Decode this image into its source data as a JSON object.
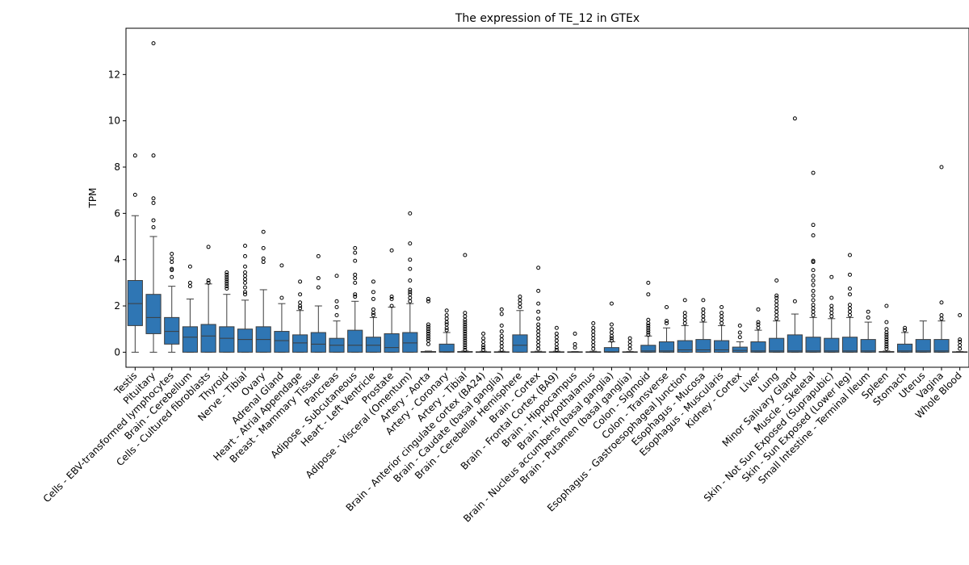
{
  "chart_data": {
    "type": "box",
    "title": "The expression of TE_12 in GTEx",
    "xlabel": "",
    "ylabel": "TPM",
    "ylim": [
      -0.65,
      14.0
    ],
    "yticks": [
      0,
      2,
      4,
      6,
      8,
      10,
      12
    ],
    "grid": false,
    "legend": "none",
    "box_color": "#2f76b4",
    "categories": [
      "Testis",
      "Pituitary",
      "Cells - EBV-transformed lymphocytes",
      "Brain - Cerebellum",
      "Cells - Cultured fibroblasts",
      "Thyroid",
      "Nerve - Tibial",
      "Ovary",
      "Adrenal Gland",
      "Heart - Atrial Appendage",
      "Breast - Mammary Tissue",
      "Pancreas",
      "Adipose - Subcutaneous",
      "Heart - Left Ventricle",
      "Prostate",
      "Adipose - Visceral (Omentum)",
      "Artery - Aorta",
      "Artery - Coronary",
      "Artery - Tibial",
      "Brain - Anterior cingulate cortex (BA24)",
      "Brain - Caudate (basal ganglia)",
      "Brain - Cerebellar Hemisphere",
      "Brain - Cortex",
      "Brain - Frontal Cortex (BA9)",
      "Brain - Hippocampus",
      "Brain - Hypothalamus",
      "Brain - Nucleus accumbens (basal ganglia)",
      "Brain - Putamen (basal ganglia)",
      "Colon - Sigmoid",
      "Colon - Transverse",
      "Esophagus - Gastroesophageal Junction",
      "Esophagus - Mucosa",
      "Esophagus - Muscularis",
      "Kidney - Cortex",
      "Liver",
      "Lung",
      "Minor Salivary Gland",
      "Muscle - Skeletal",
      "Skin - Not Sun Exposed (Suprapubic)",
      "Skin - Sun Exposed (Lower leg)",
      "Small Intestine - Terminal Ileum",
      "Spleen",
      "Stomach",
      "Uterus",
      "Vagina",
      "Whole Blood"
    ],
    "boxes": [
      {
        "q1": 1.15,
        "median": 2.1,
        "q3": 3.1,
        "lo": 0.0,
        "hi": 5.9,
        "outliers": [
          6.8,
          8.5
        ]
      },
      {
        "q1": 0.8,
        "median": 1.5,
        "q3": 2.5,
        "lo": 0.0,
        "hi": 5.0,
        "outliers": [
          5.4,
          5.7,
          6.45,
          6.65,
          8.5,
          13.35
        ]
      },
      {
        "q1": 0.35,
        "median": 0.9,
        "q3": 1.5,
        "lo": 0.0,
        "hi": 2.85,
        "outliers": [
          3.25,
          3.55,
          3.6,
          3.9,
          4.05,
          4.25
        ]
      },
      {
        "q1": 0.0,
        "median": 0.65,
        "q3": 1.1,
        "lo": 0.0,
        "hi": 2.3,
        "outliers": [
          2.85,
          3.0,
          3.7
        ]
      },
      {
        "q1": 0.0,
        "median": 0.7,
        "q3": 1.2,
        "lo": 0.0,
        "hi": 2.95,
        "outliers": [
          3.0,
          3.1,
          4.55
        ]
      },
      {
        "q1": 0.0,
        "median": 0.6,
        "q3": 1.1,
        "lo": 0.0,
        "hi": 2.5,
        "outliers": [
          2.75,
          2.85,
          2.95,
          3.05,
          3.15,
          3.25,
          3.35,
          3.45
        ]
      },
      {
        "q1": 0.0,
        "median": 0.55,
        "q3": 1.0,
        "lo": 0.0,
        "hi": 2.25,
        "outliers": [
          2.5,
          2.6,
          2.8,
          3.0,
          3.15,
          3.3,
          3.45,
          3.7,
          4.15,
          4.6
        ]
      },
      {
        "q1": 0.0,
        "median": 0.55,
        "q3": 1.1,
        "lo": 0.0,
        "hi": 2.7,
        "outliers": [
          3.9,
          4.05,
          4.5,
          5.2
        ]
      },
      {
        "q1": 0.0,
        "median": 0.5,
        "q3": 0.9,
        "lo": 0.0,
        "hi": 2.1,
        "outliers": [
          2.35,
          3.75
        ]
      },
      {
        "q1": 0.0,
        "median": 0.4,
        "q3": 0.75,
        "lo": 0.0,
        "hi": 1.8,
        "outliers": [
          1.9,
          2.0,
          2.15,
          2.5,
          3.05
        ]
      },
      {
        "q1": 0.0,
        "median": 0.35,
        "q3": 0.85,
        "lo": 0.0,
        "hi": 2.0,
        "outliers": [
          2.8,
          3.2,
          4.15
        ]
      },
      {
        "q1": 0.0,
        "median": 0.3,
        "q3": 0.6,
        "lo": 0.0,
        "hi": 1.35,
        "outliers": [
          1.6,
          1.95,
          2.2,
          3.3
        ]
      },
      {
        "q1": 0.0,
        "median": 0.3,
        "q3": 0.95,
        "lo": 0.0,
        "hi": 2.2,
        "outliers": [
          2.4,
          2.5,
          3.0,
          3.2,
          3.35,
          3.95,
          4.3,
          4.5
        ]
      },
      {
        "q1": 0.0,
        "median": 0.3,
        "q3": 0.65,
        "lo": 0.0,
        "hi": 1.5,
        "outliers": [
          1.6,
          1.7,
          1.85,
          2.3,
          2.6,
          3.05
        ]
      },
      {
        "q1": 0.0,
        "median": 0.2,
        "q3": 0.8,
        "lo": 0.0,
        "hi": 1.95,
        "outliers": [
          2.0,
          2.3,
          2.4,
          4.4
        ]
      },
      {
        "q1": 0.0,
        "median": 0.4,
        "q3": 0.85,
        "lo": 0.0,
        "hi": 2.1,
        "outliers": [
          2.2,
          2.35,
          2.5,
          2.6,
          2.7,
          3.1,
          3.6,
          4.0,
          4.7,
          6.0
        ]
      },
      {
        "q1": 0.0,
        "median": 0.01,
        "q3": 0.03,
        "lo": 0.0,
        "hi": 0.05,
        "outliers": [
          0.35,
          0.5,
          0.6,
          0.7,
          0.8,
          0.9,
          1.0,
          1.1,
          1.2,
          2.2,
          2.3
        ]
      },
      {
        "q1": 0.0,
        "median": 0.02,
        "q3": 0.35,
        "lo": 0.0,
        "hi": 0.85,
        "outliers": [
          0.95,
          1.05,
          1.2,
          1.3,
          1.45,
          1.6,
          1.8
        ]
      },
      {
        "q1": 0.0,
        "median": 0.01,
        "q3": 0.03,
        "lo": 0.0,
        "hi": 0.05,
        "outliers": [
          0.1,
          0.2,
          0.3,
          0.4,
          0.5,
          0.6,
          0.7,
          0.8,
          0.9,
          1.0,
          1.1,
          1.2,
          1.3,
          1.4,
          1.55,
          1.7,
          4.2
        ]
      },
      {
        "q1": 0.0,
        "median": 0.01,
        "q3": 0.02,
        "lo": 0.0,
        "hi": 0.04,
        "outliers": [
          0.1,
          0.2,
          0.3,
          0.45,
          0.6,
          0.8
        ]
      },
      {
        "q1": 0.0,
        "median": 0.01,
        "q3": 0.02,
        "lo": 0.0,
        "hi": 0.04,
        "outliers": [
          0.1,
          0.25,
          0.4,
          0.55,
          0.7,
          0.9,
          1.15,
          1.65,
          1.85
        ]
      },
      {
        "q1": 0.0,
        "median": 0.3,
        "q3": 0.75,
        "lo": 0.0,
        "hi": 1.8,
        "outliers": [
          1.95,
          2.1,
          2.25,
          2.4
        ]
      },
      {
        "q1": 0.0,
        "median": 0.01,
        "q3": 0.02,
        "lo": 0.0,
        "hi": 0.04,
        "outliers": [
          0.15,
          0.3,
          0.45,
          0.6,
          0.75,
          0.9,
          1.05,
          1.2,
          1.45,
          1.75,
          2.1,
          2.65,
          3.65
        ]
      },
      {
        "q1": 0.0,
        "median": 0.01,
        "q3": 0.02,
        "lo": 0.0,
        "hi": 0.04,
        "outliers": [
          0.1,
          0.2,
          0.35,
          0.5,
          0.65,
          0.8,
          1.05
        ]
      },
      {
        "q1": 0.0,
        "median": 0.01,
        "q3": 0.02,
        "lo": 0.0,
        "hi": 0.03,
        "outliers": [
          0.2,
          0.35,
          0.8
        ]
      },
      {
        "q1": 0.0,
        "median": 0.01,
        "q3": 0.02,
        "lo": 0.0,
        "hi": 0.04,
        "outliers": [
          0.15,
          0.3,
          0.45,
          0.6,
          0.75,
          0.9,
          1.05,
          1.25
        ]
      },
      {
        "q1": 0.0,
        "median": 0.02,
        "q3": 0.2,
        "lo": 0.0,
        "hi": 0.45,
        "outliers": [
          0.5,
          0.6,
          0.7,
          0.85,
          1.0,
          1.2,
          2.1
        ]
      },
      {
        "q1": 0.0,
        "median": 0.01,
        "q3": 0.02,
        "lo": 0.0,
        "hi": 0.03,
        "outliers": [
          0.15,
          0.3,
          0.45,
          0.6
        ]
      },
      {
        "q1": 0.0,
        "median": 0.05,
        "q3": 0.3,
        "lo": 0.0,
        "hi": 0.7,
        "outliers": [
          0.75,
          0.85,
          0.95,
          1.05,
          1.15,
          1.25,
          1.4,
          2.5,
          3.0
        ]
      },
      {
        "q1": 0.0,
        "median": 0.05,
        "q3": 0.45,
        "lo": 0.0,
        "hi": 1.05,
        "outliers": [
          1.25,
          1.35,
          1.95
        ]
      },
      {
        "q1": 0.0,
        "median": 0.1,
        "q3": 0.5,
        "lo": 0.0,
        "hi": 1.15,
        "outliers": [
          1.25,
          1.4,
          1.55,
          1.7,
          2.25
        ]
      },
      {
        "q1": 0.0,
        "median": 0.1,
        "q3": 0.55,
        "lo": 0.0,
        "hi": 1.3,
        "outliers": [
          1.4,
          1.55,
          1.7,
          1.85,
          2.25
        ]
      },
      {
        "q1": 0.0,
        "median": 0.1,
        "q3": 0.5,
        "lo": 0.0,
        "hi": 1.15,
        "outliers": [
          1.25,
          1.4,
          1.55,
          1.7,
          1.95
        ]
      },
      {
        "q1": 0.0,
        "median": 0.08,
        "q3": 0.22,
        "lo": 0.0,
        "hi": 0.45,
        "outliers": [
          0.65,
          0.85,
          1.15
        ]
      },
      {
        "q1": 0.0,
        "median": 0.05,
        "q3": 0.45,
        "lo": 0.0,
        "hi": 0.95,
        "outliers": [
          1.05,
          1.2,
          1.3,
          1.85
        ]
      },
      {
        "q1": 0.0,
        "median": 0.05,
        "q3": 0.6,
        "lo": 0.0,
        "hi": 1.35,
        "outliers": [
          1.45,
          1.6,
          1.75,
          1.9,
          2.05,
          2.2,
          2.35,
          2.45,
          3.1
        ]
      },
      {
        "q1": 0.0,
        "median": 0.05,
        "q3": 0.75,
        "lo": 0.0,
        "hi": 1.65,
        "outliers": [
          2.2,
          10.1
        ]
      },
      {
        "q1": 0.0,
        "median": 0.05,
        "q3": 0.65,
        "lo": 0.0,
        "hi": 1.5,
        "outliers": [
          1.6,
          1.75,
          1.9,
          2.05,
          2.25,
          2.45,
          2.65,
          2.9,
          3.1,
          3.3,
          3.55,
          3.9,
          3.95,
          5.05,
          5.5,
          7.75
        ]
      },
      {
        "q1": 0.0,
        "median": 0.05,
        "q3": 0.6,
        "lo": 0.0,
        "hi": 1.45,
        "outliers": [
          1.55,
          1.7,
          1.85,
          2.0,
          2.35,
          3.25
        ]
      },
      {
        "q1": 0.0,
        "median": 0.05,
        "q3": 0.65,
        "lo": 0.0,
        "hi": 1.5,
        "outliers": [
          1.6,
          1.75,
          1.9,
          2.05,
          2.5,
          2.75,
          3.35,
          4.2
        ]
      },
      {
        "q1": 0.0,
        "median": 0.05,
        "q3": 0.55,
        "lo": 0.0,
        "hi": 1.3,
        "outliers": [
          1.5,
          1.75
        ]
      },
      {
        "q1": 0.0,
        "median": 0.01,
        "q3": 0.03,
        "lo": 0.0,
        "hi": 0.05,
        "outliers": [
          0.15,
          0.25,
          0.35,
          0.45,
          0.55,
          0.65,
          0.75,
          0.85,
          1.0,
          1.3,
          2.0
        ]
      },
      {
        "q1": 0.0,
        "median": 0.05,
        "q3": 0.35,
        "lo": 0.0,
        "hi": 0.85,
        "outliers": [
          0.95,
          1.05
        ]
      },
      {
        "q1": 0.0,
        "median": 0.05,
        "q3": 0.55,
        "lo": 0.0,
        "hi": 1.35,
        "outliers": []
      },
      {
        "q1": 0.0,
        "median": 0.05,
        "q3": 0.55,
        "lo": 0.0,
        "hi": 1.35,
        "outliers": [
          1.45,
          1.6,
          2.15,
          8.0
        ]
      },
      {
        "q1": 0.0,
        "median": 0.01,
        "q3": 0.02,
        "lo": 0.0,
        "hi": 0.03,
        "outliers": [
          0.15,
          0.3,
          0.45,
          0.55,
          1.6
        ]
      }
    ]
  }
}
